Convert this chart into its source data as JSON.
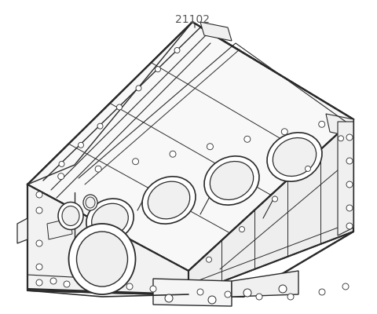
{
  "label_text": "21102",
  "label_color": "#555555",
  "line_color": "#2a2a2a",
  "bg_color": "#ffffff",
  "fig_width": 4.8,
  "fig_height": 4.0,
  "dpi": 100
}
